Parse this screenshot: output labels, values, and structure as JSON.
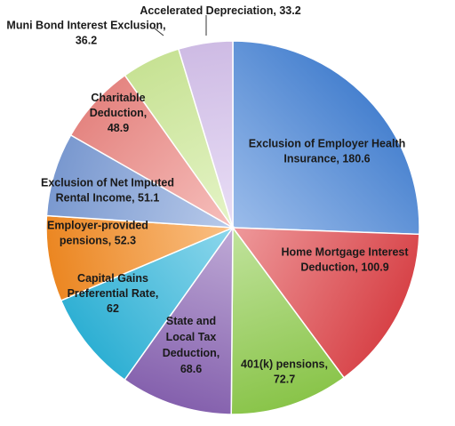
{
  "chart_data": {
    "type": "pie",
    "title": "",
    "legend": "none",
    "slices": [
      {
        "label": "Exclusion of Employer Health Insurance",
        "value": 180.6,
        "text": [
          "Exclusion of Employer Health",
          "Insurance, 180.6"
        ],
        "color": "#4a86d8"
      },
      {
        "label": "Home Mortgage Interest Deduction",
        "value": 100.9,
        "text": [
          "Home Mortgage Interest",
          "Deduction, 100.9"
        ],
        "color": "#e0454a"
      },
      {
        "label": "401(k) pensions",
        "value": 72.7,
        "text": [
          "401(k) pensions,",
          "72.7"
        ],
        "color": "#8fcc4c"
      },
      {
        "label": "State and Local Tax Deduction",
        "value": 68.6,
        "text": [
          "State and",
          "Local Tax",
          "Deduction,",
          "68.6"
        ],
        "color": "#8a64b4"
      },
      {
        "label": "Capital Gains Preferential Rate",
        "value": 62,
        "text": [
          "Capital Gains",
          "Preferential Rate,",
          "62"
        ],
        "color": "#2fb6dc"
      },
      {
        "label": "Employer-provided pensions",
        "value": 52.3,
        "text": [
          "Employer-provided",
          "pensions, 52.3"
        ],
        "color": "#f58c22"
      },
      {
        "label": "Exclusion of Net Imputed Rental Income",
        "value": 51.1,
        "text": [
          "Exclusion of Net Imputed",
          "Rental Income, 51.1"
        ],
        "color": "#7e9ed8"
      },
      {
        "label": "Charitable Deduction",
        "value": 48.9,
        "text": [
          "Charitable",
          "Deduction,",
          "48.9"
        ],
        "color": "#ee8a85"
      },
      {
        "label": "Muni Bond Interest Exclusion",
        "value": 36.2,
        "text": [
          "Muni Bond Interest Exclusion,",
          "36.2"
        ],
        "color": "#cfeb9a"
      },
      {
        "label": "Accelerated Depreciation",
        "value": 33.2,
        "text": [
          "Accelerated Depreciation, 33.2"
        ],
        "color": "#d7c3ee"
      }
    ]
  }
}
